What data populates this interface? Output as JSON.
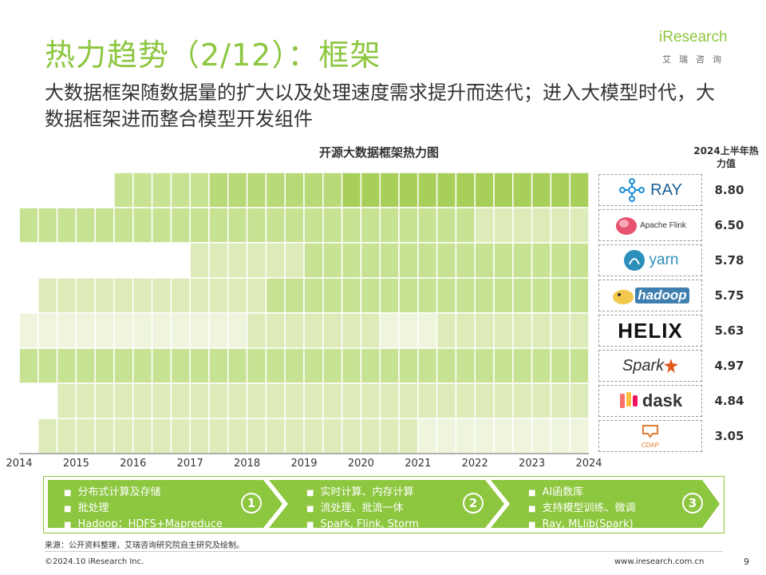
{
  "header": {
    "title": "热力趋势（2/12）：框架",
    "subtitle": "大数据框架随数据量的扩大以及处理速度需求提升而迭代；进入大模型时代，大数据框架进而整合模型开发组件",
    "logo_text": "iResearch",
    "logo_sub": "艾瑞咨询"
  },
  "chart_data": {
    "type": "heatmap",
    "title": "开源大数据框架热力图",
    "value_header": "2024上半年热力值",
    "x_ticks": [
      "2014",
      "2015",
      "2016",
      "2017",
      "2018",
      "2019",
      "2020",
      "2021",
      "2022",
      "2023",
      "2024"
    ],
    "frameworks": [
      {
        "name": "RAY",
        "logo": "ray-logo",
        "value": "8.80"
      },
      {
        "name": "Apache Flink",
        "logo": "flink-logo",
        "value": "6.50"
      },
      {
        "name": "yarn",
        "logo": "yarn-logo",
        "value": "5.78"
      },
      {
        "name": "hadoop",
        "logo": "hadoop-logo",
        "value": "5.75"
      },
      {
        "name": "HELIX",
        "logo": "helix-logo",
        "value": "5.63"
      },
      {
        "name": "Spark",
        "logo": "spark-logo",
        "value": "4.97"
      },
      {
        "name": "dask",
        "logo": "dask-logo",
        "value": "4.84"
      },
      {
        "name": "CDAP",
        "logo": "cdap-logo",
        "value": "3.05"
      }
    ],
    "intensity": [
      [
        null,
        null,
        null,
        null,
        null,
        3,
        3,
        3,
        3,
        3,
        4,
        4,
        4,
        4,
        4,
        4,
        4,
        5,
        5,
        5,
        5,
        5,
        5,
        5,
        5,
        5,
        5,
        5,
        5,
        5
      ],
      [
        3,
        3,
        3,
        3,
        3,
        3,
        3,
        3,
        3,
        3,
        3,
        3,
        3,
        3,
        3,
        3,
        3,
        3,
        3,
        3,
        3,
        3,
        3,
        3,
        2,
        2,
        2,
        2,
        2,
        2
      ],
      [
        null,
        null,
        null,
        null,
        null,
        null,
        null,
        null,
        null,
        2,
        2,
        2,
        2,
        2,
        2,
        3,
        3,
        3,
        3,
        3,
        3,
        3,
        3,
        3,
        3,
        3,
        3,
        3,
        3,
        3
      ],
      [
        null,
        2,
        2,
        2,
        2,
        2,
        2,
        2,
        2,
        2,
        2,
        2,
        2,
        3,
        3,
        3,
        3,
        3,
        3,
        3,
        3,
        3,
        3,
        3,
        3,
        3,
        3,
        3,
        3,
        3
      ],
      [
        1,
        1,
        1,
        1,
        1,
        1,
        1,
        1,
        1,
        1,
        1,
        1,
        2,
        2,
        2,
        2,
        2,
        2,
        2,
        1,
        1,
        1,
        2,
        2,
        2,
        2,
        2,
        2,
        2,
        2
      ],
      [
        3,
        3,
        3,
        3,
        3,
        3,
        3,
        3,
        3,
        3,
        3,
        3,
        3,
        3,
        3,
        3,
        3,
        3,
        3,
        3,
        3,
        3,
        3,
        3,
        3,
        3,
        3,
        3,
        3,
        3
      ],
      [
        null,
        null,
        2,
        2,
        2,
        2,
        2,
        2,
        2,
        2,
        2,
        2,
        2,
        2,
        2,
        2,
        2,
        2,
        2,
        2,
        2,
        2,
        2,
        2,
        2,
        2,
        2,
        2,
        2,
        2
      ],
      [
        null,
        2,
        2,
        2,
        2,
        2,
        2,
        2,
        2,
        2,
        2,
        2,
        2,
        2,
        2,
        2,
        2,
        2,
        2,
        2,
        2,
        1,
        1,
        1,
        1,
        1,
        1,
        1,
        1,
        1
      ]
    ],
    "colors": [
      "#eef5dc",
      "#dcebb8",
      "#c8e294",
      "#b8d978",
      "#a8cf5a"
    ]
  },
  "stages": [
    {
      "num": "①",
      "items": [
        "分布式计算及存储",
        "批处理",
        "Hadoop：HDFS+Mapreduce"
      ]
    },
    {
      "num": "②",
      "items": [
        "实时计算、内存计算",
        "流处理、批流一体",
        "Spark, Flink, Storm"
      ]
    },
    {
      "num": "③",
      "items": [
        "AI函数库",
        "支持模型训练、微调",
        "Ray, MLlib(Spark)"
      ]
    }
  ],
  "footer": {
    "source": "来源：公开资料整理，艾瑞咨询研究院自主研究及绘制。",
    "copyright": "©2024.10 iResearch Inc.",
    "website": "www.iresearch.com.cn",
    "page": "9"
  }
}
